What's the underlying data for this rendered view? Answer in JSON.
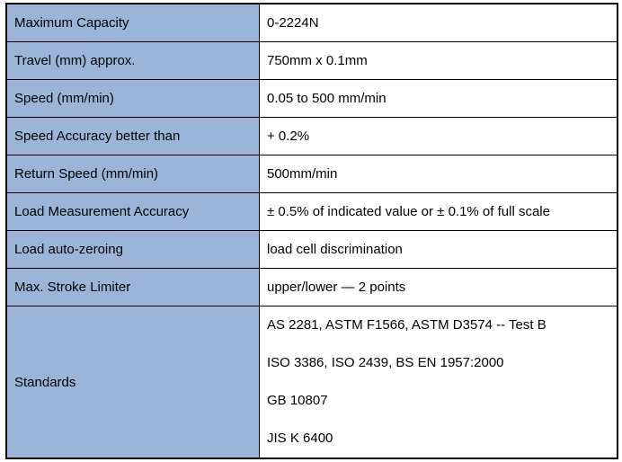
{
  "table": {
    "rows": [
      {
        "label": "Maximum Capacity",
        "value": "0-2224N"
      },
      {
        "label": "Travel (mm) approx.",
        "value": "750mm x 0.1mm"
      },
      {
        "label": "Speed (mm/min)",
        "value": "0.05 to 500 mm/min"
      },
      {
        "label": "Speed Accuracy better than",
        "value": "+ 0.2%"
      },
      {
        "label": "Return Speed (mm/min)",
        "value": "500mm/min"
      },
      {
        "label": "Load Measurement Accuracy",
        "value": "± 0.5% of indicated value or ± 0.1% of full scale"
      },
      {
        "label": "Load auto-zeroing",
        "value": "load cell discrimination"
      },
      {
        "label": "Max. Stroke Limiter",
        "value": "upper/lower — 2 points"
      },
      {
        "label": "Standards",
        "values": [
          "AS 2281, ASTM F1566, ASTM D3574 -- Test B",
          "ISO 3386, ISO 2439, BS EN 1957:2000",
          "GB 10807",
          "JIS K 6400"
        ]
      }
    ]
  }
}
